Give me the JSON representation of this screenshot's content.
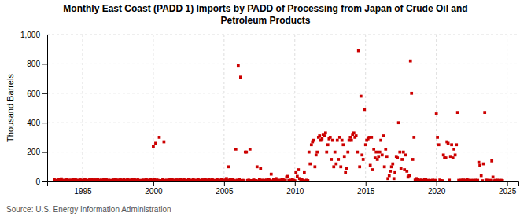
{
  "chart_data": {
    "type": "scatter",
    "title": "Monthly East Coast (PADD 1) Imports by PADD of Processing from Japan of Crude Oil and\nPetroleum Products",
    "y_label": "Thousand Barrels",
    "annotations": [
      "Source: U.S. Energy Information Administration"
    ],
    "color": "#cc0000",
    "marker": "square",
    "grid": true,
    "xlim": [
      1992.5,
      2025.8
    ],
    "xticks": [
      1995,
      2000,
      2005,
      2010,
      2015,
      2020,
      2025
    ],
    "ylim": [
      0,
      1000
    ],
    "yticks": [
      0,
      200,
      400,
      600,
      800,
      {
        "value": 1000,
        "label": "1,000"
      }
    ],
    "x": [
      1993.0,
      1993.08,
      1993.17,
      1993.25,
      1993.33,
      1993.42,
      1993.5,
      1993.58,
      1993.67,
      1993.75,
      1993.83,
      1993.92,
      1994.0,
      1994.08,
      1994.17,
      1994.25,
      1994.33,
      1994.42,
      1994.5,
      1994.58,
      1994.67,
      1994.75,
      1994.83,
      1994.92,
      1995.0,
      1995.08,
      1995.17,
      1995.25,
      1995.33,
      1995.42,
      1995.5,
      1995.58,
      1995.67,
      1995.75,
      1995.83,
      1995.92,
      1996.0,
      1996.08,
      1996.17,
      1996.25,
      1996.33,
      1996.42,
      1996.5,
      1996.58,
      1996.67,
      1996.75,
      1996.83,
      1996.92,
      1997.0,
      1997.08,
      1997.17,
      1997.25,
      1997.33,
      1997.42,
      1997.5,
      1997.58,
      1997.67,
      1997.75,
      1997.83,
      1997.92,
      1998.0,
      1998.08,
      1998.17,
      1998.25,
      1998.33,
      1998.42,
      1998.5,
      1998.58,
      1998.67,
      1998.75,
      1998.83,
      1998.92,
      1999.0,
      1999.08,
      1999.17,
      1999.25,
      1999.33,
      1999.42,
      1999.5,
      1999.58,
      1999.67,
      1999.75,
      1999.83,
      1999.92,
      2000.0,
      2000.08,
      2000.17,
      2000.25,
      2000.33,
      2000.42,
      2000.5,
      2000.58,
      2000.67,
      2000.75,
      2000.83,
      2000.92,
      2001.0,
      2001.08,
      2001.17,
      2001.25,
      2001.33,
      2001.42,
      2001.5,
      2001.58,
      2001.67,
      2001.75,
      2001.83,
      2001.92,
      2002.0,
      2002.08,
      2002.17,
      2002.25,
      2002.33,
      2002.42,
      2002.5,
      2002.58,
      2002.67,
      2002.75,
      2002.83,
      2002.92,
      2003.0,
      2003.08,
      2003.17,
      2003.25,
      2003.33,
      2003.42,
      2003.5,
      2003.58,
      2003.67,
      2003.75,
      2003.83,
      2003.92,
      2004.0,
      2004.08,
      2004.17,
      2004.25,
      2004.33,
      2004.42,
      2004.5,
      2004.58,
      2004.67,
      2004.75,
      2004.83,
      2004.92,
      2005.0,
      2005.08,
      2005.17,
      2005.25,
      2005.33,
      2005.42,
      2005.5,
      2005.58,
      2005.67,
      2005.75,
      2005.83,
      2005.92,
      2006.0,
      2006.08,
      2006.17,
      2006.25,
      2006.33,
      2006.42,
      2006.5,
      2006.58,
      2006.67,
      2006.75,
      2006.83,
      2006.92,
      2007.0,
      2007.08,
      2007.17,
      2007.25,
      2007.33,
      2007.42,
      2007.5,
      2007.58,
      2007.67,
      2007.75,
      2007.83,
      2007.92,
      2008.0,
      2008.08,
      2008.17,
      2008.25,
      2008.33,
      2008.42,
      2008.5,
      2008.58,
      2008.67,
      2008.75,
      2008.83,
      2008.92,
      2009.0,
      2009.08,
      2009.17,
      2009.25,
      2009.33,
      2009.42,
      2009.5,
      2009.58,
      2009.67,
      2009.75,
      2009.83,
      2009.92,
      2010.0,
      2010.08,
      2010.17,
      2010.25,
      2010.33,
      2010.42,
      2010.5,
      2010.58,
      2010.67,
      2010.75,
      2010.83,
      2010.92,
      2011.0,
      2011.08,
      2011.17,
      2011.25,
      2011.33,
      2011.42,
      2011.5,
      2011.58,
      2011.67,
      2011.75,
      2011.83,
      2011.92,
      2012.0,
      2012.08,
      2012.17,
      2012.25,
      2012.33,
      2012.42,
      2012.5,
      2012.58,
      2012.67,
      2012.75,
      2012.83,
      2012.92,
      2013.0,
      2013.08,
      2013.17,
      2013.25,
      2013.33,
      2013.42,
      2013.5,
      2013.58,
      2013.67,
      2013.75,
      2013.83,
      2013.92,
      2014.0,
      2014.08,
      2014.17,
      2014.25,
      2014.33,
      2014.42,
      2014.5,
      2014.58,
      2014.67,
      2014.75,
      2014.83,
      2014.92,
      2015.0,
      2015.08,
      2015.17,
      2015.25,
      2015.33,
      2015.42,
      2015.5,
      2015.58,
      2015.67,
      2015.75,
      2015.83,
      2015.92,
      2016.0,
      2016.08,
      2016.17,
      2016.25,
      2016.33,
      2016.42,
      2016.5,
      2016.58,
      2016.67,
      2016.75,
      2016.83,
      2016.92,
      2017.0,
      2017.08,
      2017.17,
      2017.25,
      2017.33,
      2017.42,
      2017.5,
      2017.58,
      2017.67,
      2017.75,
      2017.83,
      2017.92,
      2018.0,
      2018.08,
      2018.17,
      2018.25,
      2018.33,
      2018.42,
      2018.5,
      2018.58,
      2018.67,
      2018.75,
      2018.83,
      2018.92,
      2019.0,
      2019.08,
      2019.17,
      2019.25,
      2019.33,
      2019.42,
      2019.5,
      2019.58,
      2019.67,
      2019.75,
      2019.83,
      2019.92,
      2020.0,
      2020.08,
      2020.17,
      2020.25,
      2020.33,
      2020.42,
      2020.5,
      2020.58,
      2020.67,
      2020.75,
      2020.83,
      2020.92,
      2021.0,
      2021.08,
      2021.17,
      2021.25,
      2021.33,
      2021.42,
      2021.5,
      2021.58,
      2021.67,
      2021.75,
      2021.83,
      2021.92,
      2022.0,
      2022.08,
      2022.17,
      2022.25,
      2022.33,
      2022.42,
      2022.5,
      2022.58,
      2022.67,
      2022.75,
      2022.83,
      2022.92,
      2023.0,
      2023.08,
      2023.17,
      2023.25,
      2023.33,
      2023.42,
      2023.5,
      2023.58,
      2023.67,
      2023.75,
      2023.83,
      2023.92,
      2024.0,
      2024.08,
      2024.17,
      2024.25,
      2024.33,
      2024.42,
      2024.5,
      2024.58,
      2024.67
    ],
    "values": [
      15,
      5,
      8,
      3,
      12,
      7,
      18,
      4,
      9,
      6,
      11,
      14,
      8,
      5,
      10,
      3,
      15,
      7,
      12,
      4,
      9,
      6,
      11,
      8,
      5,
      10,
      15,
      3,
      8,
      6,
      12,
      7,
      14,
      4,
      9,
      11,
      6,
      13,
      8,
      5,
      10,
      3,
      15,
      7,
      12,
      4,
      9,
      6,
      8,
      5,
      11,
      3,
      14,
      7,
      10,
      4,
      16,
      6,
      9,
      12,
      5,
      8,
      13,
      3,
      10,
      6,
      15,
      7,
      12,
      4,
      9,
      11,
      6,
      3,
      8,
      5,
      10,
      7,
      14,
      4,
      9,
      6,
      12,
      8,
      240,
      15,
      260,
      10,
      8,
      300,
      6,
      5,
      12,
      270,
      7,
      9,
      5,
      8,
      12,
      6,
      15,
      4,
      9,
      7,
      11,
      5,
      8,
      13,
      6,
      10,
      15,
      4,
      8,
      5,
      12,
      7,
      9,
      6,
      14,
      8,
      5,
      9,
      12,
      6,
      8,
      4,
      11,
      7,
      15,
      5,
      9,
      12,
      6,
      10,
      14,
      4,
      8,
      5,
      12,
      7,
      9,
      6,
      13,
      8,
      5,
      10,
      20,
      8,
      100,
      15,
      6,
      12,
      8,
      5,
      220,
      9,
      790,
      12,
      710,
      6,
      8,
      5,
      200,
      200,
      7,
      9,
      220,
      6,
      5,
      10,
      8,
      6,
      100,
      4,
      12,
      90,
      9,
      6,
      8,
      5,
      10,
      8,
      15,
      6,
      50,
      4,
      12,
      7,
      20,
      5,
      9,
      6,
      8,
      12,
      15,
      4,
      8,
      30,
      35,
      7,
      9,
      6,
      14,
      8,
      5,
      60,
      35,
      80,
      20,
      8,
      12,
      7,
      60,
      5,
      9,
      6,
      200,
      120,
      250,
      270,
      280,
      100,
      180,
      200,
      300,
      310,
      280,
      290,
      320,
      310,
      330,
      200,
      250,
      290,
      300,
      150,
      280,
      100,
      200,
      120,
      280,
      150,
      300,
      100,
      280,
      250,
      170,
      60,
      90,
      200,
      280,
      300,
      280,
      320,
      330,
      300,
      310,
      200,
      890,
      100,
      580,
      180,
      150,
      490,
      250,
      280,
      290,
      300,
      110,
      300,
      80,
      220,
      160,
      200,
      150,
      170,
      200,
      280,
      180,
      310,
      100,
      220,
      170,
      20,
      40,
      70,
      100,
      120,
      20,
      60,
      170,
      160,
      400,
      200,
      90,
      150,
      200,
      80,
      180,
      70,
      30,
      40,
      820,
      600,
      150,
      300,
      10,
      20,
      15,
      5,
      8,
      10,
      5,
      8,
      12,
      15,
      5,
      8,
      4,
      7,
      6,
      9,
      5,
      8,
      460,
      300,
      250,
      10,
      6,
      5,
      180,
      160,
      160,
      270,
      260,
      9,
      170,
      250,
      160,
      220,
      180,
      250,
      470,
      8,
      6,
      9,
      8,
      10,
      5,
      8,
      12,
      6,
      9,
      5,
      7,
      8,
      6,
      9,
      5,
      8,
      130,
      110,
      40,
      5,
      120,
      470,
      8,
      9,
      5,
      6,
      8,
      140,
      30,
      5,
      8,
      6,
      9,
      5,
      7,
      8,
      6
    ]
  }
}
